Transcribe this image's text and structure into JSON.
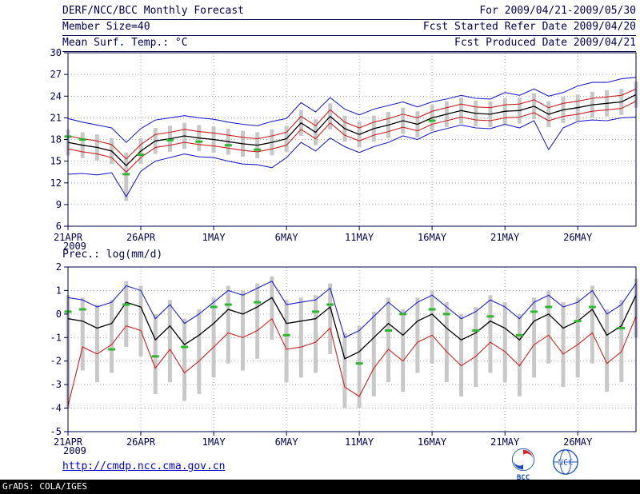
{
  "header": {
    "title": "DERF/NCC/BCC Monthly Forecast",
    "for_range": "For 2009/04/21-2009/05/30",
    "member_size": "Member Size=40",
    "refer_date": "Fcst Started Refer Date 2009/04/20",
    "temp_label": "Mean Surf. Temp.: °C",
    "produced_date": "Fcst Produced Date 2009/04/21"
  },
  "prec_label": "Prec.: log(mm/d)",
  "footer": {
    "url": "http://cmdp.ncc.cma.gov.cn",
    "grads_credit": "GrADS: COLA/IGES",
    "bcc_label": "BCC",
    "ncc_label": "NCC"
  },
  "colors": {
    "text": "#00004e",
    "axis": "#000040",
    "grid": "#909090",
    "link": "#0000cc",
    "bar": "#c8c8c8",
    "green": "#2db82d",
    "blue": "#2222cc",
    "red": "#cc2222",
    "black": "#000000"
  },
  "chart_data": [
    {
      "type": "line",
      "title": "Mean Surf. Temp.: °C",
      "xlabel": "",
      "ylabel": "°C",
      "grid": true,
      "legend": "none",
      "year": "2009",
      "x_range": [
        0,
        39
      ],
      "x_tick_days": [
        0,
        5,
        10,
        15,
        20,
        25,
        30,
        35
      ],
      "x_tick_labels": [
        "21APR",
        "26APR",
        "1MAY",
        "6MAY",
        "11MAY",
        "16MAY",
        "21MAY",
        "26MAY"
      ],
      "ylim": [
        6,
        30
      ],
      "y_ticks": [
        6,
        9,
        12,
        15,
        18,
        21,
        24,
        27,
        30
      ],
      "series": [
        {
          "id": "upper-envelope-blue",
          "name": "ensemble max",
          "color": "#2222cc",
          "width": 1.1,
          "values": [
            20.9,
            20.4,
            20.0,
            19.6,
            17.6,
            19.5,
            20.7,
            21.0,
            21.3,
            21.0,
            20.8,
            20.4,
            20.1,
            19.9,
            20.5,
            20.9,
            23.1,
            21.8,
            23.8,
            22.2,
            21.4,
            22.2,
            22.7,
            23.2,
            22.5,
            23.2,
            23.6,
            24.1,
            23.7,
            23.6,
            24.5,
            24.1,
            25.0,
            24.0,
            24.5,
            25.4,
            25.9,
            25.9,
            26.4,
            26.6
          ]
        },
        {
          "id": "upper-band-red",
          "name": "upper spread band",
          "color": "#cc2222",
          "width": 1.1,
          "values": [
            18.5,
            18.1,
            17.8,
            17.3,
            15.3,
            17.3,
            18.7,
            19.0,
            19.4,
            19.1,
            18.9,
            18.6,
            18.3,
            18.1,
            18.5,
            19.0,
            21.2,
            19.9,
            22.1,
            20.4,
            19.6,
            20.4,
            20.9,
            21.5,
            21.0,
            21.9,
            22.4,
            22.9,
            22.5,
            22.4,
            22.8,
            22.9,
            23.5,
            22.4,
            23.0,
            23.3,
            23.7,
            23.9,
            24.1,
            25.0
          ]
        },
        {
          "id": "ensemble-mean-black",
          "name": "ensemble mean",
          "color": "#000000",
          "width": 1.3,
          "values": [
            17.6,
            17.2,
            16.9,
            16.4,
            14.4,
            16.4,
            17.8,
            18.1,
            18.5,
            18.2,
            18.0,
            17.7,
            17.4,
            17.2,
            17.6,
            18.1,
            20.3,
            19.0,
            21.2,
            19.5,
            18.7,
            19.5,
            20.0,
            20.6,
            20.1,
            21.0,
            21.5,
            22.0,
            21.6,
            21.5,
            21.9,
            22.0,
            22.6,
            21.5,
            22.1,
            22.4,
            22.8,
            23.0,
            23.2,
            24.2
          ]
        },
        {
          "id": "lower-band-red",
          "name": "lower spread band",
          "color": "#cc2222",
          "width": 1.1,
          "values": [
            16.7,
            16.3,
            16.0,
            15.5,
            13.5,
            15.5,
            16.9,
            17.2,
            17.6,
            17.3,
            17.1,
            16.8,
            16.5,
            16.3,
            16.7,
            17.2,
            19.4,
            18.1,
            20.3,
            18.6,
            17.8,
            18.6,
            19.1,
            19.7,
            19.2,
            20.1,
            20.6,
            21.1,
            20.7,
            20.6,
            21.0,
            21.1,
            21.7,
            20.6,
            21.2,
            21.5,
            21.9,
            22.1,
            22.3,
            23.3
          ]
        },
        {
          "id": "lower-envelope-blue",
          "name": "ensemble min",
          "color": "#2222cc",
          "width": 1.1,
          "values": [
            13.2,
            13.3,
            13.1,
            13.4,
            10.1,
            13.6,
            15.0,
            15.5,
            16.0,
            15.6,
            15.5,
            15.0,
            14.6,
            14.5,
            14.1,
            15.5,
            17.6,
            16.4,
            18.2,
            17.0,
            16.2,
            17.0,
            17.6,
            18.5,
            18.0,
            19.0,
            19.5,
            20.0,
            19.6,
            19.5,
            20.1,
            19.6,
            20.6,
            16.6,
            19.6,
            20.5,
            20.7,
            20.6,
            21.0,
            21.1
          ]
        }
      ],
      "bars": {
        "name": "ensemble spread",
        "color": "#c8c8c8",
        "top": [
          19.4,
          19.0,
          18.7,
          18.2,
          16.2,
          18.2,
          19.6,
          19.9,
          20.3,
          20.0,
          19.8,
          19.5,
          19.2,
          19.0,
          19.4,
          19.9,
          22.1,
          20.8,
          23.0,
          21.3,
          20.5,
          21.3,
          21.8,
          22.4,
          21.9,
          22.8,
          23.3,
          23.8,
          23.4,
          23.3,
          23.7,
          23.8,
          24.4,
          23.3,
          23.9,
          24.2,
          24.6,
          24.8,
          25.0,
          26.0
        ],
        "bottom": [
          15.8,
          15.4,
          15.1,
          14.6,
          9.5,
          14.6,
          16.0,
          16.3,
          16.7,
          16.4,
          16.2,
          15.9,
          15.6,
          15.4,
          15.8,
          16.3,
          18.5,
          17.2,
          19.4,
          17.7,
          16.9,
          17.7,
          18.2,
          18.8,
          18.3,
          19.2,
          19.7,
          20.2,
          19.8,
          19.7,
          20.1,
          20.2,
          20.8,
          19.7,
          20.3,
          20.6,
          21.0,
          21.2,
          21.4,
          22.4
        ]
      },
      "obs": {
        "name": "observation dashes",
        "color": "#2db82d",
        "values": [
          18.4,
          18.0,
          null,
          null,
          13.2,
          15.9,
          null,
          17.9,
          null,
          17.7,
          null,
          17.2,
          null,
          16.6,
          null,
          null,
          null,
          null,
          null,
          null,
          null,
          null,
          null,
          null,
          null,
          20.6,
          null,
          null,
          null,
          null,
          null,
          null,
          null,
          null,
          null,
          null,
          null,
          null,
          null,
          null
        ]
      }
    },
    {
      "type": "line",
      "title": "Prec.: log(mm/d)",
      "xlabel": "",
      "ylabel": "log(mm/d)",
      "grid": true,
      "legend": "none",
      "year": "2009",
      "x_range": [
        0,
        39
      ],
      "x_tick_days": [
        0,
        5,
        10,
        15,
        20,
        25,
        30,
        35
      ],
      "x_tick_labels": [
        "21APR",
        "26APR",
        "1MAY",
        "6MAY",
        "11MAY",
        "16MAY",
        "21MAY",
        "26MAY"
      ],
      "ylim": [
        -5,
        2
      ],
      "y_ticks": [
        -5,
        -4,
        -3,
        -2,
        -1,
        0,
        1,
        2
      ],
      "series": [
        {
          "id": "upper-envelope-blue",
          "name": "ensemble max",
          "color": "#2222cc",
          "width": 1.1,
          "values": [
            0.7,
            0.6,
            0.3,
            0.5,
            1.2,
            1.0,
            -0.2,
            0.4,
            -0.4,
            0.0,
            0.5,
            1.0,
            0.8,
            1.1,
            1.4,
            0.4,
            0.5,
            0.6,
            1.1,
            -1.0,
            -0.7,
            -0.1,
            0.5,
            0.0,
            0.5,
            0.8,
            0.3,
            -0.2,
            0.1,
            0.6,
            0.3,
            -0.2,
            0.5,
            0.8,
            0.3,
            0.5,
            1.0,
            0.0,
            0.4,
            1.3
          ]
        },
        {
          "id": "ensemble-mean-black",
          "name": "ensemble mean",
          "color": "#000000",
          "width": 1.3,
          "values": [
            -0.2,
            -0.3,
            -0.6,
            -0.4,
            0.5,
            0.3,
            -1.1,
            -0.5,
            -1.3,
            -0.9,
            -0.4,
            0.2,
            0.0,
            0.3,
            0.7,
            -0.4,
            -0.3,
            -0.2,
            0.3,
            -1.9,
            -1.6,
            -1.0,
            -0.4,
            -0.9,
            -0.3,
            0.0,
            -0.6,
            -1.1,
            -0.8,
            -0.3,
            -0.6,
            -1.1,
            -0.3,
            0.0,
            -0.6,
            -0.3,
            0.2,
            -0.9,
            -0.5,
            0.8
          ]
        },
        {
          "id": "lower-envelope-red",
          "name": "ensemble min",
          "color": "#cc2222",
          "width": 1.1,
          "values": [
            -3.9,
            -1.4,
            -1.7,
            -1.3,
            -0.5,
            -0.7,
            -2.3,
            -1.5,
            -2.5,
            -2.0,
            -1.4,
            -0.8,
            -1.0,
            -0.7,
            -0.2,
            -1.5,
            -1.4,
            -1.2,
            -0.6,
            -3.1,
            -3.5,
            -2.3,
            -1.5,
            -2.0,
            -1.2,
            -0.9,
            -1.6,
            -2.2,
            -1.8,
            -1.2,
            -1.6,
            -2.2,
            -1.3,
            -0.9,
            -1.7,
            -1.3,
            -0.8,
            -2.1,
            -1.6,
            -0.1
          ]
        }
      ],
      "bars": {
        "name": "ensemble spread",
        "color": "#c8c8c8",
        "top": [
          0.8,
          0.7,
          0.4,
          0.6,
          1.4,
          1.2,
          0.0,
          0.6,
          -0.2,
          0.2,
          0.7,
          1.2,
          1.0,
          1.3,
          1.6,
          0.6,
          0.7,
          0.8,
          1.3,
          -0.8,
          -0.5,
          0.1,
          0.7,
          0.2,
          0.7,
          1.0,
          0.5,
          0.0,
          0.3,
          0.8,
          0.5,
          0.0,
          0.7,
          1.0,
          0.5,
          0.7,
          1.2,
          0.2,
          0.6,
          1.5
        ],
        "bottom": [
          -4.0,
          -2.4,
          -2.9,
          -2.5,
          -1.4,
          -1.8,
          -3.4,
          -2.9,
          -3.7,
          -3.4,
          -2.7,
          -2.1,
          -2.4,
          -1.9,
          -1.1,
          -2.9,
          -2.7,
          -2.5,
          -1.7,
          -4.0,
          -4.0,
          -3.5,
          -2.9,
          -3.3,
          -2.5,
          -2.1,
          -2.9,
          -3.5,
          -3.1,
          -2.5,
          -2.9,
          -3.5,
          -2.7,
          -2.1,
          -3.1,
          -2.7,
          -2.1,
          -3.3,
          -2.9,
          -1.0
        ]
      },
      "obs": {
        "name": "observation dashes",
        "color": "#2db82d",
        "values": [
          0.1,
          0.2,
          null,
          -1.5,
          0.4,
          null,
          -1.8,
          null,
          -1.4,
          null,
          0.3,
          0.4,
          null,
          0.5,
          null,
          -0.9,
          null,
          0.1,
          0.4,
          null,
          -2.1,
          null,
          -0.7,
          0.0,
          null,
          0.2,
          0.0,
          null,
          -0.7,
          -0.1,
          null,
          -0.9,
          0.1,
          0.3,
          null,
          -0.3,
          0.3,
          null,
          -0.6,
          null
        ]
      }
    }
  ]
}
